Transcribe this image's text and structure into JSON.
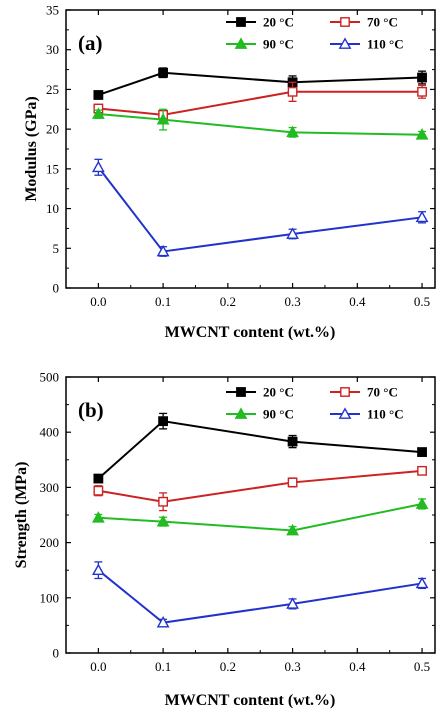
{
  "chart_data": [
    {
      "type": "line",
      "panel_label": "(a)",
      "xlabel": "MWCNT content (wt.%)",
      "ylabel": "Modulus (GPa)",
      "xlim": [
        -0.05,
        0.52
      ],
      "ylim": [
        0,
        35
      ],
      "x_ticks": [
        "0.0",
        "0.1",
        "0.2",
        "0.3",
        "0.4",
        "0.5"
      ],
      "y_ticks": [
        "0",
        "5",
        "10",
        "15",
        "20",
        "25",
        "30",
        "35"
      ],
      "x": [
        0.0,
        0.1,
        0.3,
        0.5
      ],
      "legend_position": "top-right",
      "series": [
        {
          "name": "20 °C",
          "color": "#000000",
          "marker": "filled-square",
          "values": [
            24.3,
            27.1,
            25.9,
            26.5
          ],
          "errors": [
            0.3,
            0.6,
            0.8,
            0.8
          ]
        },
        {
          "name": "70 °C",
          "color": "#cc2222",
          "marker": "open-square",
          "values": [
            22.6,
            21.8,
            24.7,
            24.7
          ],
          "errors": [
            0.5,
            0.5,
            1.2,
            0.8
          ]
        },
        {
          "name": "90 °C",
          "color": "#22bb22",
          "marker": "filled-triangle",
          "values": [
            21.9,
            21.2,
            19.6,
            19.3
          ],
          "errors": [
            0.5,
            1.3,
            0.6,
            0.4
          ]
        },
        {
          "name": "110 °C",
          "color": "#2233cc",
          "marker": "open-triangle",
          "values": [
            15.2,
            4.6,
            6.8,
            8.9
          ],
          "errors": [
            1.0,
            0.6,
            0.6,
            0.7
          ]
        }
      ]
    },
    {
      "type": "line",
      "panel_label": "(b)",
      "xlabel": "MWCNT content (wt.%)",
      "ylabel": "Strength (MPa)",
      "xlim": [
        -0.05,
        0.52
      ],
      "ylim": [
        0,
        500
      ],
      "x_ticks": [
        "0.0",
        "0.1",
        "0.2",
        "0.3",
        "0.4",
        "0.5"
      ],
      "y_ticks": [
        "0",
        "100",
        "200",
        "300",
        "400",
        "500"
      ],
      "x": [
        0.0,
        0.1,
        0.3,
        0.5
      ],
      "legend_position": "top-right",
      "series": [
        {
          "name": "20 °C",
          "color": "#000000",
          "marker": "filled-square",
          "values": [
            316,
            420,
            383,
            364
          ],
          "errors": [
            5,
            14,
            11,
            7
          ]
        },
        {
          "name": "70 °C",
          "color": "#cc2222",
          "marker": "open-square",
          "values": [
            294,
            274,
            309,
            330
          ],
          "errors": [
            9,
            16,
            8,
            5
          ]
        },
        {
          "name": "90 °C",
          "color": "#22bb22",
          "marker": "filled-triangle",
          "values": [
            245,
            238,
            222,
            270
          ],
          "errors": [
            6,
            8,
            7,
            9
          ]
        },
        {
          "name": "110 °C",
          "color": "#2233cc",
          "marker": "open-triangle",
          "values": [
            150,
            55,
            89,
            126
          ],
          "errors": [
            15,
            6,
            9,
            9
          ]
        }
      ]
    }
  ]
}
